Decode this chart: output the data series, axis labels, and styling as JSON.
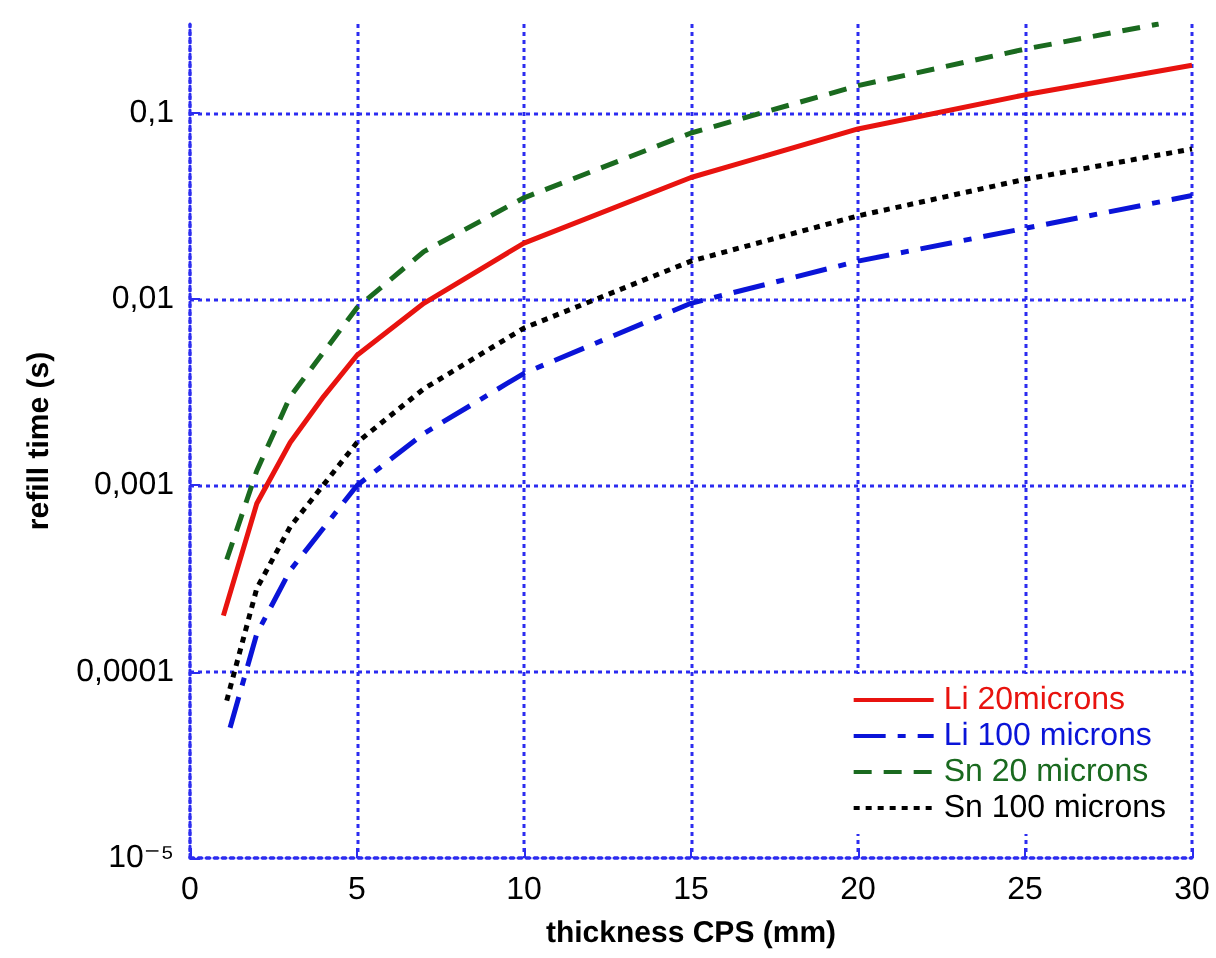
{
  "chart_data": {
    "type": "line",
    "xlabel": "thickness CPS (mm)",
    "ylabel": "refill time (s)",
    "log": "y",
    "grid": true,
    "legend": "bottom right",
    "marker": "none",
    "xlim": [
      0,
      30
    ],
    "xticks": [
      0,
      5,
      10,
      15,
      20,
      25,
      30
    ],
    "ylim": [
      1e-05,
      0.3
    ],
    "yticks": [
      {
        "value": 1e-05,
        "label": "10⁻⁵"
      },
      {
        "value": 0.0001,
        "label": "0,0001"
      },
      {
        "value": 0.001,
        "label": "0,001"
      },
      {
        "value": 0.01,
        "label": "0,01"
      },
      {
        "value": 0.1,
        "label": "0,1"
      }
    ],
    "series": [
      {
        "name": "Li 20microns",
        "color": "#e8130f",
        "line_style": "solid",
        "x": [
          1,
          2,
          3,
          4,
          5,
          7,
          10,
          15,
          20,
          25,
          30
        ],
        "values": [
          0.0002,
          0.0008,
          0.0017,
          0.003,
          0.005,
          0.0095,
          0.02,
          0.045,
          0.082,
          0.125,
          0.18
        ]
      },
      {
        "name": "Li 100 microns",
        "color": "#0a14d8",
        "line_style": "dashdot",
        "x": [
          1.2,
          2,
          3,
          5,
          7,
          10,
          15,
          20,
          25,
          30
        ],
        "values": [
          5e-05,
          0.00016,
          0.00035,
          0.001,
          0.0019,
          0.004,
          0.0095,
          0.016,
          0.024,
          0.036
        ]
      },
      {
        "name": "Sn 20 microns",
        "color": "#1a6a1f",
        "line_style": "dashed",
        "x": [
          1.1,
          2,
          3,
          5,
          7,
          10,
          15,
          20,
          25,
          29
        ],
        "values": [
          0.0004,
          0.0012,
          0.003,
          0.009,
          0.018,
          0.035,
          0.078,
          0.14,
          0.22,
          0.3
        ]
      },
      {
        "name": "Sn 100 microns",
        "color": "#000000",
        "line_style": "dotted",
        "x": [
          1.1,
          2,
          3,
          5,
          7,
          10,
          15,
          20,
          25,
          30
        ],
        "values": [
          7e-05,
          0.00028,
          0.0006,
          0.0017,
          0.0033,
          0.007,
          0.016,
          0.028,
          0.044,
          0.064
        ]
      }
    ]
  }
}
